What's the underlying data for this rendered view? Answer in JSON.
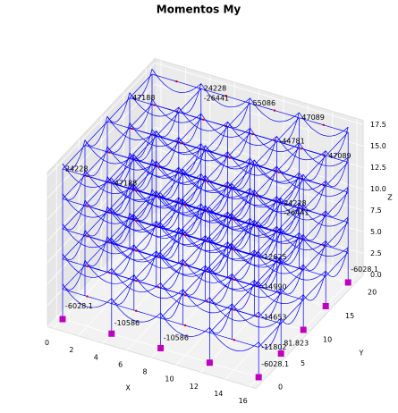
{
  "chart_data": {
    "type": "frame3d",
    "title": "Momentos My",
    "xlabel": "X",
    "ylabel": "Y",
    "zlabel": "Z",
    "xlim": [
      -0.5,
      16.5
    ],
    "ylim": [
      -2,
      22
    ],
    "zlim": [
      0,
      18
    ],
    "xticks": [
      0,
      2,
      4,
      6,
      8,
      10,
      12,
      14,
      16
    ],
    "yticks": [
      0,
      5,
      10,
      15,
      20
    ],
    "zticks": [
      {
        "value": 0,
        "label": "0.0"
      },
      2.5,
      {
        "value": 5,
        "label": "5.0"
      },
      7.5,
      {
        "value": 10,
        "label": "10.0"
      },
      12.5,
      {
        "value": 15,
        "label": "15.0"
      },
      17.5
    ],
    "frame_color": "#0000ff",
    "support_color": "#c000c0",
    "supports": {
      "x": [
        0,
        4,
        8,
        12,
        16,
        16,
        16,
        16,
        16
      ],
      "y": [
        0,
        0,
        0,
        0,
        0,
        5,
        10,
        15,
        20
      ]
    },
    "annotations": [
      {
        "text": "-6028.1",
        "x": 0,
        "y": 0,
        "z": 1.5
      },
      {
        "text": "-10586",
        "x": 4,
        "y": 0,
        "z": 1.2
      },
      {
        "text": "-10586",
        "x": 8,
        "y": 0,
        "z": 1.2
      },
      {
        "text": "-6028.1",
        "x": 16,
        "y": 0,
        "z": 1.5
      },
      {
        "text": "81.823",
        "x": 16,
        "y": 5,
        "z": 1.2
      },
      {
        "text": "-6028.1",
        "x": 16,
        "y": 20,
        "z": 1.5
      },
      {
        "text": "24228",
        "x": 0,
        "y": 0,
        "z": 17.5
      },
      {
        "text": "47188",
        "x": 4,
        "y": 0,
        "z": 17.5
      },
      {
        "text": "47188",
        "x": 0,
        "y": 15,
        "z": 17.5
      },
      {
        "text": "24228",
        "x": 4,
        "y": 20,
        "z": 17.5
      },
      {
        "text": "-26441",
        "x": 4,
        "y": 20,
        "z": 16.4
      },
      {
        "text": "55086",
        "x": 8,
        "y": 20,
        "z": 17.5
      },
      {
        "text": "47089",
        "x": 12,
        "y": 20,
        "z": 17.5
      },
      {
        "text": "-44781",
        "x": 12,
        "y": 15,
        "z": 17.5
      },
      {
        "text": "47089",
        "x": 16,
        "y": 15,
        "z": 17.5
      },
      {
        "text": "24228",
        "x": 16,
        "y": 5,
        "z": 17.5
      },
      {
        "text": "-26441",
        "x": 16,
        "y": 5,
        "z": 16.4
      },
      {
        "text": "-12625",
        "x": 16,
        "y": 0,
        "z": 14
      },
      {
        "text": "-14990",
        "x": 16,
        "y": 0,
        "z": 10.5
      },
      {
        "text": "-14653",
        "x": 16,
        "y": 0,
        "z": 7
      },
      {
        "text": "-11802",
        "x": 16,
        "y": 0,
        "z": 3.5
      }
    ]
  }
}
